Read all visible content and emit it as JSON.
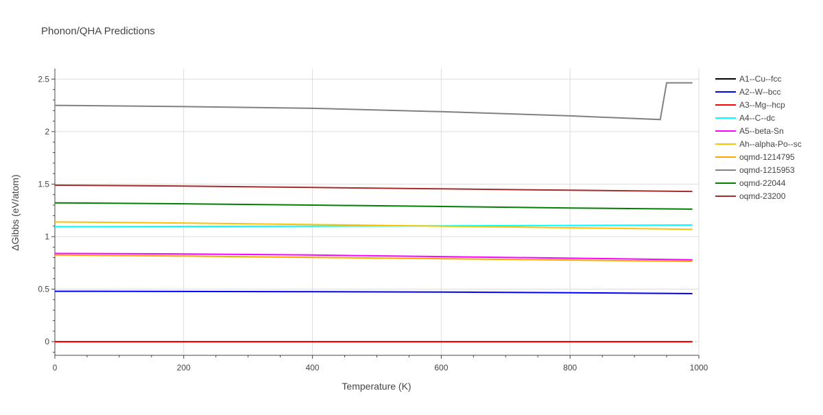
{
  "chart_data": {
    "type": "line",
    "title": "Phonon/QHA Predictions",
    "xlabel": "Temperature (K)",
    "ylabel": "ΔGibbs (eV/atom)",
    "xlim": [
      0,
      1000
    ],
    "ylim": [
      -0.13,
      2.6
    ],
    "x_ticks": [
      0,
      200,
      400,
      600,
      800,
      1000
    ],
    "y_ticks": [
      0,
      0.5,
      1,
      1.5,
      2,
      2.5
    ],
    "y_tick_labels": [
      "0",
      "0.5",
      "1",
      "1.5",
      "2",
      "2.5"
    ],
    "grid": true,
    "legend_position": "right",
    "series": [
      {
        "name": "A1--Cu--fcc",
        "color": "#000000",
        "x": [
          0,
          990
        ],
        "y": [
          0,
          0
        ]
      },
      {
        "name": "A2--W--bcc",
        "color": "#0000ff",
        "x": [
          0,
          200,
          400,
          600,
          800,
          990
        ],
        "y": [
          0.48,
          0.478,
          0.476,
          0.472,
          0.466,
          0.458
        ]
      },
      {
        "name": "A3--Mg--hcp",
        "color": "#ff0000",
        "x": [
          0,
          990
        ],
        "y": [
          0,
          0
        ]
      },
      {
        "name": "A4--C--dc",
        "color": "#00ffff",
        "x": [
          0,
          200,
          400,
          600,
          800,
          990
        ],
        "y": [
          1.095,
          1.097,
          1.1,
          1.103,
          1.107,
          1.111
        ]
      },
      {
        "name": "A5--beta-Sn",
        "color": "#ff00ff",
        "x": [
          0,
          200,
          400,
          600,
          800,
          990
        ],
        "y": [
          0.84,
          0.835,
          0.825,
          0.81,
          0.795,
          0.78
        ]
      },
      {
        "name": "Ah--alpha-Po--sc",
        "color": "#ffc000",
        "x": [
          0,
          200,
          400,
          600,
          800,
          990
        ],
        "y": [
          1.14,
          1.13,
          1.115,
          1.1,
          1.085,
          1.07
        ]
      },
      {
        "name": "oqmd-1214795",
        "color": "#ffa500",
        "x": [
          0,
          200,
          400,
          600,
          800,
          990
        ],
        "y": [
          0.825,
          0.815,
          0.802,
          0.79,
          0.777,
          0.765
        ]
      },
      {
        "name": "oqmd-1215953",
        "color": "#808080",
        "x": [
          0,
          200,
          400,
          600,
          800,
          940,
          950,
          990
        ],
        "y": [
          2.25,
          2.238,
          2.222,
          2.19,
          2.15,
          2.115,
          2.465,
          2.465
        ]
      },
      {
        "name": "oqmd-22044",
        "color": "#008000",
        "x": [
          0,
          200,
          400,
          600,
          800,
          990
        ],
        "y": [
          1.322,
          1.313,
          1.3,
          1.287,
          1.273,
          1.262
        ]
      },
      {
        "name": "oqmd-23200",
        "color": "#a52a2a",
        "x": [
          0,
          200,
          400,
          600,
          800,
          990
        ],
        "y": [
          1.49,
          1.482,
          1.468,
          1.455,
          1.442,
          1.43
        ]
      }
    ]
  }
}
